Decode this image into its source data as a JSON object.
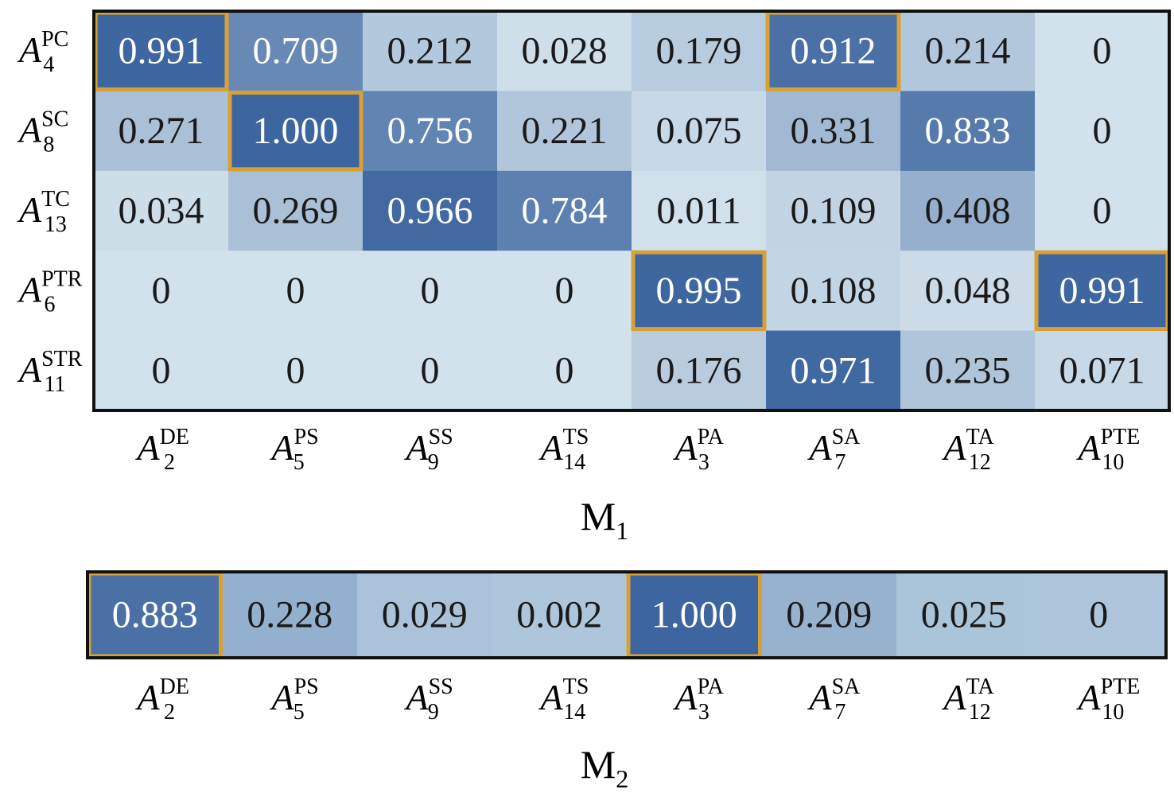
{
  "chart_data": [
    {
      "type": "heatmap",
      "title": "M",
      "title_sub": "1",
      "row_labels": [
        {
          "base": "A",
          "sub": "4",
          "sup": "PC"
        },
        {
          "base": "A",
          "sub": "8",
          "sup": "SC"
        },
        {
          "base": "A",
          "sub": "13",
          "sup": "TC"
        },
        {
          "base": "A",
          "sub": "6",
          "sup": "PTR"
        },
        {
          "base": "A",
          "sub": "11",
          "sup": "STR"
        }
      ],
      "col_labels": [
        {
          "base": "A",
          "sub": "2",
          "sup": "DE"
        },
        {
          "base": "A",
          "sub": "5",
          "sup": "PS"
        },
        {
          "base": "A",
          "sub": "9",
          "sup": "SS"
        },
        {
          "base": "A",
          "sub": "14",
          "sup": "TS"
        },
        {
          "base": "A",
          "sub": "3",
          "sup": "PA"
        },
        {
          "base": "A",
          "sub": "7",
          "sup": "SA"
        },
        {
          "base": "A",
          "sub": "12",
          "sup": "TA"
        },
        {
          "base": "A",
          "sub": "10",
          "sup": "PTE"
        }
      ],
      "values": [
        [
          "0.991",
          "0.709",
          "0.212",
          "0.028",
          "0.179",
          "0.912",
          "0.214",
          "0"
        ],
        [
          "0.271",
          "1.000",
          "0.756",
          "0.221",
          "0.075",
          "0.331",
          "0.833",
          "0"
        ],
        [
          "0.034",
          "0.269",
          "0.966",
          "0.784",
          "0.011",
          "0.109",
          "0.408",
          "0"
        ],
        [
          "0",
          "0",
          "0",
          "0",
          "0.995",
          "0.108",
          "0.048",
          "0.991"
        ],
        [
          "0",
          "0",
          "0",
          "0",
          "0.176",
          "0.971",
          "0.235",
          "0.071"
        ]
      ],
      "highlighted_cells": [
        [
          0,
          0
        ],
        [
          0,
          5
        ],
        [
          1,
          1
        ],
        [
          3,
          4
        ],
        [
          3,
          7
        ]
      ],
      "highlight_color": "#D9A035",
      "color_low": "#D2E2EC",
      "color_high": "#3D659F"
    },
    {
      "type": "heatmap",
      "title": "M",
      "title_sub": "2",
      "col_labels": [
        {
          "base": "A",
          "sub": "2",
          "sup": "DE"
        },
        {
          "base": "A",
          "sub": "5",
          "sup": "PS"
        },
        {
          "base": "A",
          "sub": "9",
          "sup": "SS"
        },
        {
          "base": "A",
          "sub": "14",
          "sup": "TS"
        },
        {
          "base": "A",
          "sub": "3",
          "sup": "PA"
        },
        {
          "base": "A",
          "sub": "7",
          "sup": "SA"
        },
        {
          "base": "A",
          "sub": "12",
          "sup": "TA"
        },
        {
          "base": "A",
          "sub": "10",
          "sup": "PTE"
        }
      ],
      "values": [
        [
          "0.883",
          "0.228",
          "0.029",
          "0.002",
          "1.000",
          "0.209",
          "0.025",
          "0"
        ]
      ],
      "highlighted_cells": [
        [
          0,
          0
        ],
        [
          0,
          4
        ]
      ],
      "highlight_color": "#D9A035",
      "color_low": "#ADC6DC",
      "color_high": "#3D659F"
    }
  ]
}
